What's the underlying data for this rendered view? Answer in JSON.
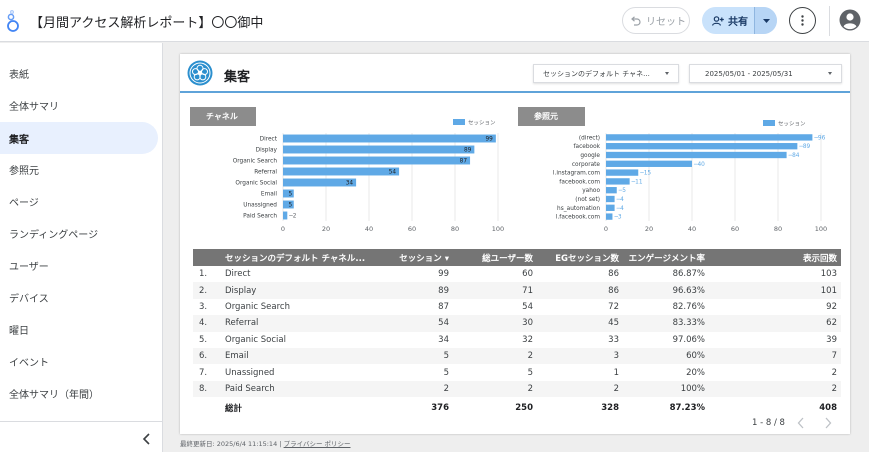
{
  "header": {
    "title": "【月間アクセス解析レポート】〇〇御中",
    "reset_label": "リセット",
    "share_label": "共有"
  },
  "sidebar": {
    "items": [
      {
        "label": "表紙",
        "active": false
      },
      {
        "label": "全体サマリ",
        "active": false
      },
      {
        "label": "集客",
        "active": true
      },
      {
        "label": "参照元",
        "active": false
      },
      {
        "label": "ページ",
        "active": false
      },
      {
        "label": "ランディングページ",
        "active": false
      },
      {
        "label": "ユーザー",
        "active": false
      },
      {
        "label": "デバイス",
        "active": false
      },
      {
        "label": "曜日",
        "active": false
      },
      {
        "label": "イベント",
        "active": false
      },
      {
        "label": "全体サマリ（年間）",
        "active": false
      }
    ]
  },
  "page": {
    "heading": "集客",
    "dimension_dropdown": "セッションのデフォルト チャネ...",
    "date_range": "2025/05/01 - 2025/05/31"
  },
  "chart_data": [
    {
      "type": "bar",
      "orientation": "horizontal",
      "title": "チャネル",
      "categories": [
        "Direct",
        "Display",
        "Organic Search",
        "Referral",
        "Organic Social",
        "Email",
        "Unassigned",
        "Paid Search"
      ],
      "series": [
        {
          "name": "セッション",
          "values": [
            99,
            89,
            87,
            54,
            34,
            5,
            5,
            2
          ]
        }
      ],
      "xlim": [
        0,
        100
      ],
      "xticks": [
        0,
        20,
        40,
        60,
        80,
        100
      ],
      "data_labels": "inside",
      "grid": true,
      "legend": "top-right",
      "color": "#5fa9e6"
    },
    {
      "type": "bar",
      "orientation": "horizontal",
      "title": "参照元",
      "categories": [
        "(direct)",
        "facebook",
        "google",
        "corporate",
        "l.instagram.com",
        "facebook.com",
        "yahoo",
        "(not set)",
        "hs_automation",
        "l.facebook.com"
      ],
      "series": [
        {
          "name": "セッション",
          "values": [
            96,
            89,
            84,
            40,
            15,
            11,
            5,
            4,
            4,
            3
          ]
        }
      ],
      "xlim": [
        0,
        100
      ],
      "xticks": [
        0,
        20,
        40,
        60,
        80,
        100
      ],
      "data_labels": "outside",
      "grid": true,
      "legend": "top-right",
      "color": "#5fa9e6"
    }
  ],
  "table": {
    "headers": [
      "セッションのデフォルト チャネル...",
      "セッション ▾",
      "総ユーザー数",
      "EGセッション数",
      "エンゲージメント率",
      "表示回数"
    ],
    "rows": [
      [
        "1.",
        "Direct",
        "99",
        "60",
        "86",
        "86.87%",
        "103"
      ],
      [
        "2.",
        "Display",
        "89",
        "71",
        "86",
        "96.63%",
        "101"
      ],
      [
        "3.",
        "Organic Search",
        "87",
        "54",
        "72",
        "82.76%",
        "92"
      ],
      [
        "4.",
        "Referral",
        "54",
        "30",
        "45",
        "83.33%",
        "62"
      ],
      [
        "5.",
        "Organic Social",
        "34",
        "32",
        "33",
        "97.06%",
        "39"
      ],
      [
        "6.",
        "Email",
        "5",
        "2",
        "3",
        "60%",
        "7"
      ],
      [
        "7.",
        "Unassigned",
        "5",
        "5",
        "1",
        "20%",
        "2"
      ],
      [
        "8.",
        "Paid Search",
        "2",
        "2",
        "2",
        "100%",
        "2"
      ]
    ],
    "total": [
      "総計",
      "376",
      "250",
      "328",
      "87.23%",
      "408"
    ],
    "pagination": "1 - 8 / 8"
  },
  "footer": {
    "last_updated": "最終更新日: 2025/6/4 11:15:14",
    "separator": "|",
    "privacy": "プライバシー ポリシー"
  },
  "colors": {
    "accent": "#5fa9e6",
    "tag_bg": "#8c8c8c",
    "table_header": "#757575",
    "share_bg": "#c9e2fb"
  },
  "icons": {
    "logo": "looker-studio-logo",
    "reset": "undo-icon",
    "share": "add-person-icon",
    "more": "more-vert-icon",
    "account": "account-circle-icon",
    "page": "flower-emblem-icon"
  }
}
